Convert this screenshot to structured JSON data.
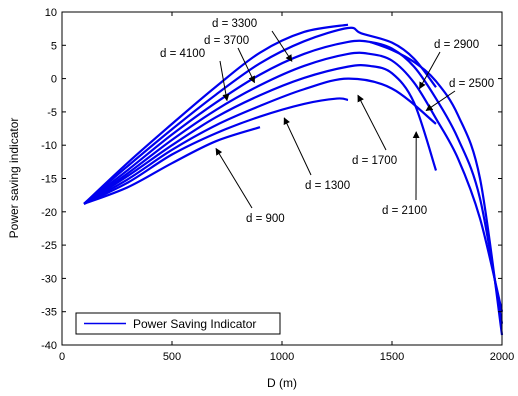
{
  "chart_data": {
    "type": "line",
    "xlabel": "D (m)",
    "ylabel": "Power saving indicator",
    "xlim": [
      0,
      2000
    ],
    "ylim": [
      -40,
      10
    ],
    "xticks": [
      0,
      500,
      1000,
      1500,
      2000
    ],
    "yticks": [
      -40,
      -35,
      -30,
      -25,
      -20,
      -15,
      -10,
      -5,
      0,
      5,
      10
    ],
    "grid": false,
    "legend": {
      "placement": "bottom-left",
      "entries": [
        "Power Saving Indicator"
      ]
    },
    "line_color": "#0000ee",
    "series": [
      {
        "points": [
          [
            100,
            -18.8
          ],
          [
            300,
            -16.3
          ],
          [
            500,
            -12.7
          ],
          [
            700,
            -9.4
          ],
          [
            900,
            -7.3
          ]
        ]
      },
      {
        "points": [
          [
            100,
            -18.8
          ],
          [
            300,
            -15.6
          ],
          [
            500,
            -11.4
          ],
          [
            700,
            -8.2
          ],
          [
            900,
            -5.7
          ],
          [
            1100,
            -3.8
          ],
          [
            1250,
            -3.0
          ],
          [
            1300,
            -3.2
          ]
        ]
      },
      {
        "points": [
          [
            100,
            -18.8
          ],
          [
            300,
            -15.1
          ],
          [
            500,
            -10.7
          ],
          [
            700,
            -7.0
          ],
          [
            900,
            -4.1
          ],
          [
            1100,
            -1.6
          ],
          [
            1300,
            0.0
          ],
          [
            1500,
            -1.5
          ],
          [
            1700,
            -6.8
          ]
        ]
      },
      {
        "points": [
          [
            100,
            -18.8
          ],
          [
            300,
            -14.6
          ],
          [
            500,
            -10.0
          ],
          [
            700,
            -5.8
          ],
          [
            900,
            -2.5
          ],
          [
            1100,
            0.1
          ],
          [
            1300,
            1.8
          ],
          [
            1400,
            1.9
          ],
          [
            1500,
            0.8
          ],
          [
            1600,
            -3.6
          ],
          [
            1700,
            -13.8
          ]
        ]
      },
      {
        "points": [
          [
            100,
            -18.8
          ],
          [
            300,
            -14.2
          ],
          [
            500,
            -9.2
          ],
          [
            700,
            -4.7
          ],
          [
            900,
            -1.0
          ],
          [
            1100,
            1.9
          ],
          [
            1300,
            3.7
          ],
          [
            1400,
            3.7
          ],
          [
            1500,
            2.7
          ],
          [
            1600,
            -0.6
          ],
          [
            1700,
            -6.0
          ],
          [
            1800,
            -12.0
          ],
          [
            1900,
            -21.0
          ],
          [
            2000,
            -35.0
          ]
        ]
      },
      {
        "points": [
          [
            100,
            -18.8
          ],
          [
            300,
            -13.7
          ],
          [
            500,
            -8.4
          ],
          [
            700,
            -3.6
          ],
          [
            900,
            0.6
          ],
          [
            1100,
            3.7
          ],
          [
            1300,
            5.5
          ],
          [
            1400,
            5.5
          ],
          [
            1500,
            4.5
          ],
          [
            1600,
            1.8
          ],
          [
            1700,
            -3.0
          ],
          [
            1800,
            -9.0
          ],
          [
            1900,
            -18.0
          ],
          [
            2000,
            -36.8
          ]
        ]
      },
      {
        "points": [
          [
            100,
            -18.8
          ],
          [
            300,
            -13.1
          ],
          [
            500,
            -7.6
          ],
          [
            700,
            -2.4
          ],
          [
            900,
            2.3
          ],
          [
            1100,
            5.6
          ],
          [
            1300,
            7.6
          ],
          [
            1360,
            6.8
          ],
          [
            1500,
            5.4
          ],
          [
            1600,
            3.0
          ],
          [
            1700,
            -1.3
          ]
        ]
      },
      {
        "points": [
          [
            100,
            -18.8
          ],
          [
            300,
            -12.6
          ],
          [
            500,
            -6.8
          ],
          [
            700,
            -1.2
          ],
          [
            900,
            3.9
          ],
          [
            1100,
            7.0
          ],
          [
            1300,
            8.1
          ]
        ]
      },
      {
        "points": [
          [
            1400,
            5.5
          ],
          [
            1500,
            4.3
          ],
          [
            1600,
            2.5
          ],
          [
            1700,
            -0.4
          ],
          [
            1800,
            -5.5
          ],
          [
            1900,
            -15.0
          ],
          [
            2000,
            -38.5
          ]
        ]
      }
    ],
    "annotations": [
      {
        "text": "d = 3300",
        "x_head": 1045,
        "y_head": 2.6
      },
      {
        "text": "d = 3700",
        "x_head": 875,
        "y_head": -0.6
      },
      {
        "text": "d = 4100",
        "x_head": 750,
        "y_head": -3.3
      },
      {
        "text": "d = 2900",
        "x_head": 1625,
        "y_head": -1.5
      },
      {
        "text": "d = 2500",
        "x_head": 1655,
        "y_head": -4.8
      },
      {
        "text": "d = 1700",
        "x_head": 1345,
        "y_head": -2.5
      },
      {
        "text": "d = 1300",
        "x_head": 1010,
        "y_head": -5.9
      },
      {
        "text": "d = 2100",
        "x_head": 1610,
        "y_head": -8.0
      },
      {
        "text": "d = 900",
        "x_head": 700,
        "y_head": -10.5
      }
    ]
  }
}
